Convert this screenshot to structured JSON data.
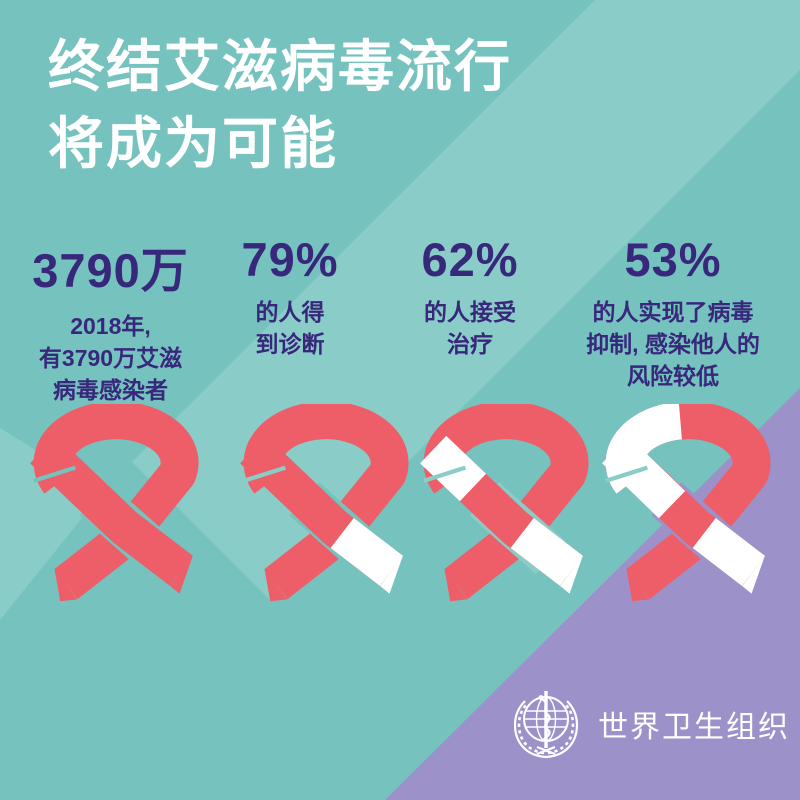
{
  "title": {
    "line1": "终结艾滋病毒流行",
    "line2": "将成为可能"
  },
  "stats": [
    {
      "value": "3790万",
      "desc_lines": [
        "2018年,",
        "有3790万艾滋",
        "病毒感染者"
      ]
    },
    {
      "value": "79%",
      "desc_lines": [
        "的人得",
        "到诊断"
      ]
    },
    {
      "value": "62%",
      "desc_lines": [
        "的人接受",
        "治疗"
      ]
    },
    {
      "value": "53%",
      "desc_lines": [
        "的人实现了病毒",
        "抑制, 感染他人的",
        "风险较低"
      ]
    }
  ],
  "ribbons": [
    {
      "icon": "aids-ribbon",
      "percent_red": 100,
      "white_tail": false,
      "white_limb_end": null,
      "white_arc": false,
      "gap_fold": "teal_dark",
      "gap_cross": "teal_dark"
    },
    {
      "icon": "aids-ribbon",
      "percent_red": 79,
      "white_tail": true,
      "white_limb_end": null,
      "white_arc": false,
      "gap_fold": "teal_pale",
      "gap_cross": "teal_dark"
    },
    {
      "icon": "aids-ribbon",
      "percent_red": 62,
      "white_tail": true,
      "white_limb_end": [
        58,
        88
      ],
      "white_arc": false,
      "gap_fold": "teal_pale",
      "gap_cross": "teal_pale"
    },
    {
      "icon": "aids-ribbon",
      "percent_red": 53,
      "white_tail": true,
      "white_limb_end": [
        76,
        106
      ],
      "white_arc": true,
      "gap_fold": "teal_pale",
      "gap_cross": "purple"
    }
  ],
  "footer": {
    "org_name": "世界卫生组织",
    "logo_icon": "who-emblem"
  },
  "colors": {
    "teal_dark": "#75c2be",
    "teal_pale": "#8accc7",
    "purple": "#9c91c9",
    "ribbon_red": "#ee5e68",
    "ribbon_white": "#ffffff",
    "stat_indigo": "#38287c",
    "title_white": "#ffffff"
  },
  "chart_data": {
    "type": "table",
    "style": "infographic pictograph — AIDS awareness ribbons, red share encodes value",
    "title": "终结艾滋病毒流行 将成为可能",
    "categories": [
      "2018年艾滋病毒感染者",
      "的人得到诊断",
      "的人接受治疗",
      "的人实现了病毒抑制, 感染他人的风险较低"
    ],
    "values": [
      "3790万",
      "79%",
      "62%",
      "53%"
    ],
    "values_numeric": [
      37900000,
      0.79,
      0.62,
      0.53
    ],
    "source_org": "世界卫生组织"
  }
}
